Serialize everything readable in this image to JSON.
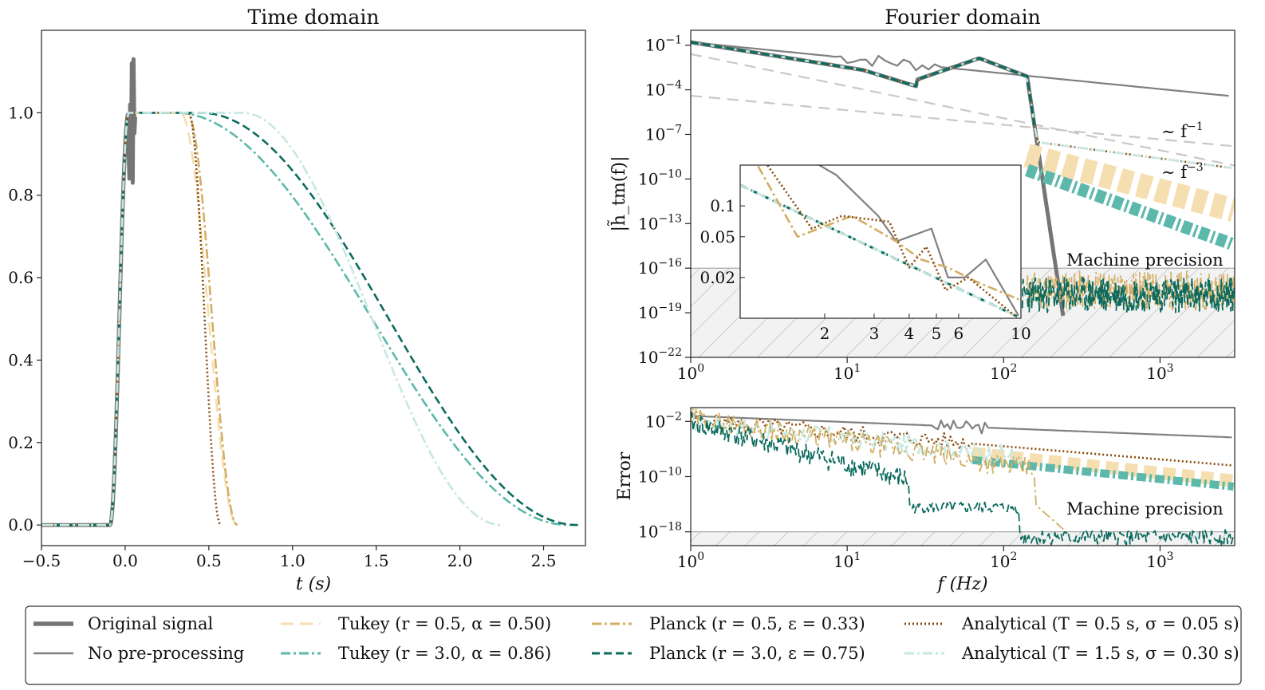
{
  "chart_data": [
    {
      "id": "time",
      "type": "line",
      "title": "Time domain",
      "xlabel": "t (s)",
      "ylabel": "",
      "xlim": [
        -0.5,
        2.75
      ],
      "ylim": [
        -0.05,
        1.2
      ],
      "xticks": [
        -0.5,
        0.0,
        0.5,
        1.0,
        1.5,
        2.0,
        2.5
      ],
      "xtick_labels": [
        "−0.5",
        "0.0",
        "0.5",
        "1.0",
        "1.5",
        "2.0",
        "2.5"
      ],
      "yticks": [
        0.0,
        0.2,
        0.4,
        0.6,
        0.8,
        1.0
      ],
      "ytick_labels": [
        "0.0",
        "0.2",
        "0.4",
        "0.6",
        "0.8",
        "1.0"
      ],
      "taper_series": [
        {
          "name": "Tukey (r=0.5, α=0.50)",
          "style": "tukey05",
          "start": 0.33,
          "end": 0.67
        },
        {
          "name": "Planck (r=0.5, ε=0.33)",
          "style": "planck05",
          "start": 0.37,
          "end": 0.67
        },
        {
          "name": "Analytical (T=0.5s, σ=0.05s)",
          "style": "analytic05",
          "start": 0.38,
          "end": 0.57
        },
        {
          "name": "Tukey (r=3.0, α=0.86)",
          "style": "tukey30",
          "start": 0.3,
          "end": 2.65
        },
        {
          "name": "Planck (r=3.0, ε=0.75)",
          "style": "planck30",
          "start": 0.45,
          "end": 2.7
        },
        {
          "name": "Analytical (T=1.5s, σ=0.30s)",
          "style": "analytic15",
          "start": 0.7,
          "end": 2.25
        }
      ],
      "signal_peak": 1.13
    },
    {
      "id": "fourier",
      "type": "line",
      "title": "Fourier domain",
      "xlabel": "f (Hz)",
      "ylabel": "|h̃_tm(f)|",
      "xscale": "log",
      "yscale": "log",
      "xlim": [
        1,
        3000
      ],
      "ylim_exp": [
        -22,
        0
      ],
      "xticks": [
        "10^0",
        "10^1",
        "10^2",
        "10^3"
      ],
      "yticks": [
        "10^-1",
        "10^-4",
        "10^-7",
        "10^-10",
        "10^-13",
        "10^-16",
        "10^-19",
        "10^-22"
      ],
      "machine_precision_exp": -16,
      "annotations": {
        "slope1": "∼ f",
        "slope1_exp": "−1",
        "slope3": "∼ f",
        "slope3_exp": "−3",
        "machine": "Machine precision"
      },
      "inset": {
        "xlim": [
          1,
          10
        ],
        "xticks": [
          "2",
          "3",
          "4",
          "5",
          "6",
          "10"
        ],
        "yticks": [
          "0.1",
          "0.05",
          "0.02"
        ]
      }
    },
    {
      "id": "error",
      "type": "line",
      "title": "",
      "xlabel": "f (Hz)",
      "ylabel": "Error",
      "xscale": "log",
      "yscale": "log",
      "xlim": [
        1,
        3000
      ],
      "ylim_exp": [
        -20,
        0
      ],
      "yticks": [
        "10^-2",
        "10^-10",
        "10^-18"
      ],
      "xticks": [
        "10^0",
        "10^1",
        "10^2",
        "10^3"
      ],
      "machine_precision_exp": -18,
      "annotations": {
        "machine": "Machine precision"
      }
    }
  ],
  "legend": {
    "col1": [
      {
        "label": "Original signal",
        "style": "original"
      },
      {
        "label": "No pre-processing",
        "style": "nopre"
      }
    ],
    "col2": [
      {
        "label": "Tukey (r = 0.5, α = 0.50)",
        "style": "tukey05"
      },
      {
        "label": "Tukey (r = 3.0, α = 0.86)",
        "style": "tukey30"
      }
    ],
    "col3": [
      {
        "label": "Planck (r = 0.5, ε = 0.33)",
        "style": "planck05"
      },
      {
        "label": "Planck (r = 3.0, ε = 0.75)",
        "style": "planck30"
      }
    ],
    "col4": [
      {
        "label": "Analytical (T = 0.5 s, σ = 0.05 s)",
        "style": "analytic05"
      },
      {
        "label": "Analytical (T = 1.5 s, σ = 0.30 s)",
        "style": "analytic15"
      }
    ]
  },
  "colors": {
    "original": "#757575",
    "nopre": "#808080",
    "tukey05": "#f5dfb0",
    "planck05": "#d4ae62",
    "analytic05": "#8b4a0e",
    "tukey30": "#5bb8aa",
    "planck30": "#0b6b5e",
    "analytic15": "#c6e8e1",
    "guide": "#c8c8c8"
  }
}
